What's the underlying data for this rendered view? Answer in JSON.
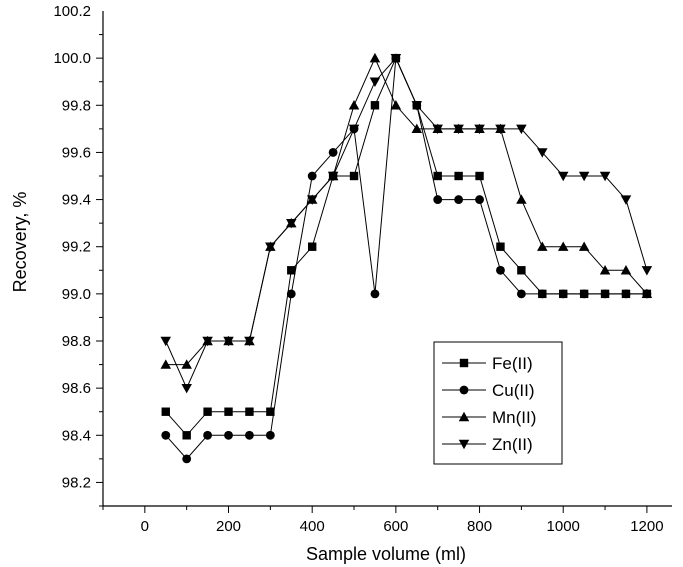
{
  "chart_data": {
    "type": "line",
    "xlabel": "Sample volume (ml)",
    "ylabel": "Recovery, %",
    "xlim": [
      -100,
      1260
    ],
    "ylim": [
      98.1,
      100.2
    ],
    "xticks": [
      0,
      200,
      400,
      600,
      800,
      1000,
      1200
    ],
    "yticks": [
      98.2,
      98.4,
      98.6,
      98.8,
      99.0,
      99.2,
      99.4,
      99.6,
      99.8,
      100.0,
      100.2
    ],
    "xtick_labels": [
      "0",
      "200",
      "400",
      "600",
      "800",
      "1000",
      "1200"
    ],
    "ytick_labels": [
      "98.2",
      "98.4",
      "98.6",
      "98.8",
      "99.0",
      "99.2",
      "99.4",
      "99.6",
      "99.8",
      "100.0",
      "100.2"
    ],
    "legend_position": "lower-right",
    "grid": false,
    "series": [
      {
        "name": "Fe(II)",
        "marker": "square",
        "x": [
          50,
          100,
          150,
          200,
          250,
          300,
          350,
          400,
          450,
          500,
          550,
          600,
          650,
          700,
          750,
          800,
          850,
          900,
          950,
          1000,
          1050,
          1100,
          1150,
          1200
        ],
        "y": [
          98.5,
          98.4,
          98.5,
          98.5,
          98.5,
          98.5,
          99.1,
          99.2,
          99.5,
          99.5,
          99.8,
          100.0,
          99.8,
          99.5,
          99.5,
          99.5,
          99.2,
          99.1,
          99.0,
          99.0,
          99.0,
          99.0,
          99.0,
          99.0
        ]
      },
      {
        "name": "Cu(II)",
        "marker": "circle",
        "x": [
          50,
          100,
          150,
          200,
          250,
          300,
          350,
          400,
          450,
          500,
          550,
          600,
          650,
          700,
          750,
          800,
          850,
          900,
          950,
          1000,
          1050,
          1100,
          1150,
          1200
        ],
        "y": [
          98.4,
          98.3,
          98.4,
          98.4,
          98.4,
          98.4,
          99.0,
          99.5,
          99.6,
          99.7,
          99.0,
          100.0,
          99.8,
          99.4,
          99.4,
          99.4,
          99.1,
          99.0,
          99.0,
          99.0,
          99.0,
          99.0,
          99.0,
          99.0
        ]
      },
      {
        "name": "Mn(II)",
        "marker": "triangle-up",
        "x": [
          50,
          100,
          150,
          200,
          250,
          300,
          350,
          400,
          450,
          500,
          550,
          600,
          650,
          700,
          750,
          800,
          850,
          900,
          950,
          1000,
          1050,
          1100,
          1150,
          1200
        ],
        "y": [
          98.7,
          98.7,
          98.8,
          98.8,
          98.8,
          99.2,
          99.3,
          99.4,
          99.5,
          99.8,
          100.0,
          99.8,
          99.7,
          99.7,
          99.7,
          99.7,
          99.7,
          99.4,
          99.2,
          99.2,
          99.2,
          99.1,
          99.1,
          99.0
        ]
      },
      {
        "name": "Zn(II)",
        "marker": "triangle-down",
        "x": [
          50,
          100,
          150,
          200,
          250,
          300,
          350,
          400,
          450,
          500,
          550,
          600,
          650,
          700,
          750,
          800,
          850,
          900,
          950,
          1000,
          1050,
          1100,
          1150,
          1200
        ],
        "y": [
          98.8,
          98.6,
          98.8,
          98.8,
          98.8,
          99.2,
          99.3,
          99.4,
          99.5,
          99.7,
          99.9,
          100.0,
          99.8,
          99.7,
          99.7,
          99.7,
          99.7,
          99.7,
          99.6,
          99.5,
          99.5,
          99.5,
          99.4,
          99.1
        ]
      }
    ]
  }
}
